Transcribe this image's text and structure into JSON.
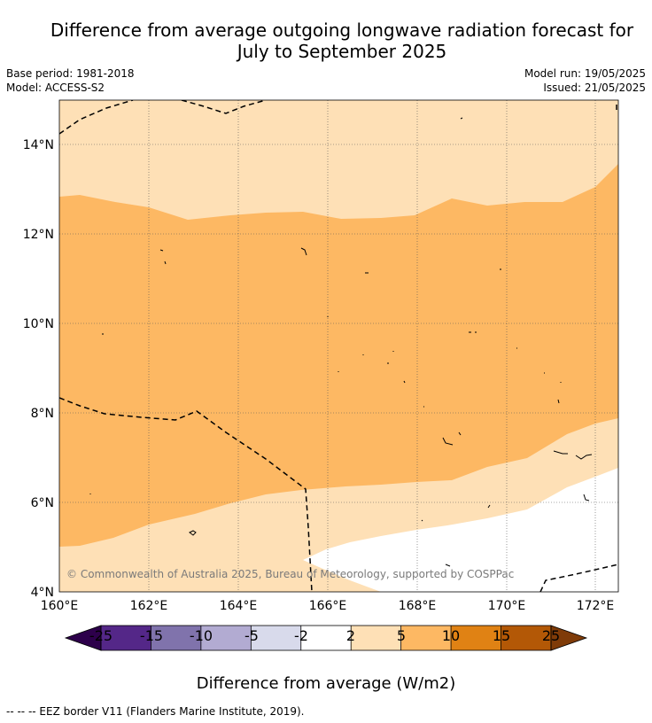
{
  "title": {
    "line1": "Difference from average outgoing longwave radiation forecast for",
    "line2": "July to September 2025"
  },
  "meta": {
    "base_period": "Base period: 1981-2018",
    "model": "Model: ACCESS-S2",
    "model_run": "Model run: 19/05/2025",
    "issued": "Issued: 21/05/2025"
  },
  "map": {
    "lat_labels": [
      "14°N",
      "12°N",
      "10°N",
      "8°N",
      "6°N",
      "4°N"
    ],
    "lon_labels": [
      "160°E",
      "162°E",
      "164°E",
      "166°E",
      "168°E",
      "170°E",
      "172°E"
    ],
    "copyright": "© Commonwealth of Australia 2025, Bureau of Meteorology, supported by COSPPac"
  },
  "colorbar": {
    "labels": [
      "-25",
      "-15",
      "-10",
      "-5",
      "-2",
      "2",
      "5",
      "10",
      "15",
      "25"
    ],
    "colors": [
      "#2d004b",
      "#542788",
      "#8073ac",
      "#b2abd2",
      "#d8daeb",
      "#ffffff",
      "#fee0b6",
      "#fdb863",
      "#e08214",
      "#b35806",
      "#7f3b08"
    ],
    "title": "Difference from average (W/m2)"
  },
  "footer": "--  --  -- EEZ border V11 (Flanders Marine Institute, 2019)."
}
